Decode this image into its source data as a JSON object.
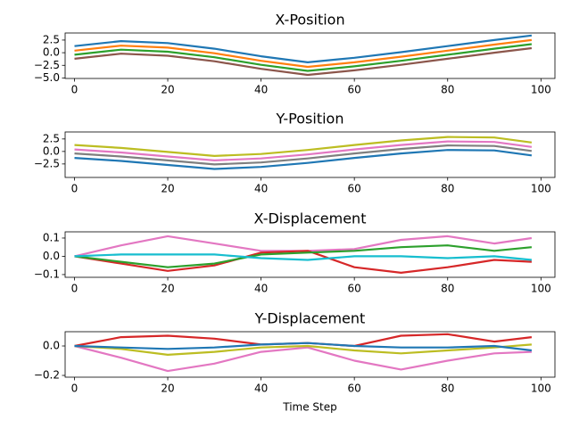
{
  "chart_data": [
    {
      "type": "line",
      "title": "X-Position",
      "x": [
        0,
        10,
        20,
        30,
        40,
        50,
        60,
        70,
        80,
        90,
        98
      ],
      "series": [
        {
          "color": "#1f77b4",
          "values": [
            1.3,
            2.3,
            1.9,
            0.8,
            -0.7,
            -1.9,
            -1.0,
            0.1,
            1.3,
            2.5,
            3.4
          ]
        },
        {
          "color": "#ff7f0e",
          "values": [
            0.4,
            1.4,
            1.0,
            -0.1,
            -1.6,
            -2.8,
            -1.9,
            -0.8,
            0.4,
            1.6,
            2.5
          ]
        },
        {
          "color": "#2ca02c",
          "values": [
            -0.4,
            0.6,
            0.2,
            -0.9,
            -2.4,
            -3.6,
            -2.7,
            -1.6,
            -0.4,
            0.8,
            1.7
          ]
        },
        {
          "color": "#8c564b",
          "values": [
            -1.2,
            -0.2,
            -0.6,
            -1.7,
            -3.2,
            -4.4,
            -3.5,
            -2.4,
            -1.2,
            0.0,
            0.9
          ]
        }
      ],
      "xlim": [
        -2,
        103
      ],
      "ylim": [
        -5.1,
        3.9
      ],
      "xticks": [
        0,
        20,
        40,
        60,
        80,
        100
      ],
      "yticks": [
        {
          "value": 2.5,
          "label": "2.5"
        },
        {
          "value": 0,
          "label": "0.0"
        },
        {
          "value": -2.5,
          "label": "−2.5"
        },
        {
          "value": -5,
          "label": "−5.0"
        }
      ]
    },
    {
      "type": "line",
      "title": "Y-Position",
      "x": [
        0,
        10,
        20,
        30,
        40,
        50,
        60,
        70,
        80,
        90,
        98
      ],
      "series": [
        {
          "color": "#bcbd22",
          "values": [
            1.3,
            0.7,
            -0.1,
            -0.9,
            -0.5,
            0.3,
            1.3,
            2.2,
            2.9,
            2.8,
            1.8
          ]
        },
        {
          "color": "#e377c2",
          "values": [
            0.4,
            -0.2,
            -1.0,
            -1.8,
            -1.4,
            -0.6,
            0.4,
            1.3,
            2.0,
            1.9,
            0.9
          ]
        },
        {
          "color": "#7f7f7f",
          "values": [
            -0.4,
            -1.0,
            -1.8,
            -2.6,
            -2.2,
            -1.4,
            -0.4,
            0.5,
            1.2,
            1.1,
            0.1
          ]
        },
        {
          "color": "#1f77b4",
          "values": [
            -1.3,
            -1.9,
            -2.7,
            -3.5,
            -3.1,
            -2.3,
            -1.3,
            -0.4,
            0.3,
            0.2,
            -0.8
          ]
        }
      ],
      "xlim": [
        -2,
        103
      ],
      "ylim": [
        -5.2,
        3.9
      ],
      "xticks": [
        0,
        20,
        40,
        60,
        80,
        100
      ],
      "yticks": [
        {
          "value": 2.5,
          "label": "2.5"
        },
        {
          "value": 0,
          "label": "0.0"
        },
        {
          "value": -2.5,
          "label": "−2.5"
        }
      ]
    },
    {
      "type": "line",
      "title": "X-Displacement",
      "x": [
        0,
        10,
        20,
        30,
        40,
        50,
        60,
        70,
        80,
        90,
        98
      ],
      "series": [
        {
          "color": "#e377c2",
          "values": [
            0,
            0.06,
            0.11,
            0.07,
            0.03,
            0.03,
            0.04,
            0.09,
            0.11,
            0.07,
            0.1
          ]
        },
        {
          "color": "#d62728",
          "values": [
            0,
            -0.04,
            -0.08,
            -0.05,
            0.02,
            0.03,
            -0.06,
            -0.09,
            -0.06,
            -0.02,
            -0.03
          ]
        },
        {
          "color": "#2ca02c",
          "values": [
            0,
            -0.03,
            -0.06,
            -0.04,
            0.01,
            0.02,
            0.03,
            0.05,
            0.06,
            0.03,
            0.05
          ]
        },
        {
          "color": "#17becf",
          "values": [
            0,
            0.01,
            0.01,
            0.01,
            -0.01,
            -0.02,
            0.0,
            0.0,
            -0.01,
            0.0,
            -0.02
          ]
        }
      ],
      "xlim": [
        -2,
        103
      ],
      "ylim": [
        -0.115,
        0.134
      ],
      "xticks": [
        0,
        20,
        40,
        60,
        80,
        100
      ],
      "yticks": [
        {
          "value": 0.1,
          "label": "0.1"
        },
        {
          "value": 0,
          "label": "0.0"
        },
        {
          "value": -0.1,
          "label": "−0.1"
        }
      ]
    },
    {
      "type": "line",
      "title": "Y-Displacement",
      "xlabel": "Time Step",
      "x": [
        0,
        10,
        20,
        30,
        40,
        50,
        60,
        70,
        80,
        90,
        98
      ],
      "series": [
        {
          "color": "#d62728",
          "values": [
            0,
            0.06,
            0.07,
            0.05,
            0.01,
            0.02,
            0.0,
            0.07,
            0.08,
            0.03,
            0.06
          ]
        },
        {
          "color": "#e377c2",
          "values": [
            0,
            -0.08,
            -0.17,
            -0.12,
            -0.04,
            -0.01,
            -0.1,
            -0.16,
            -0.1,
            -0.05,
            -0.04
          ]
        },
        {
          "color": "#bcbd22",
          "values": [
            0,
            -0.02,
            -0.06,
            -0.04,
            -0.01,
            0.0,
            -0.03,
            -0.05,
            -0.03,
            -0.01,
            0.01
          ]
        },
        {
          "color": "#1f77b4",
          "values": [
            0,
            -0.01,
            -0.02,
            -0.01,
            0.01,
            0.02,
            0.0,
            -0.01,
            -0.01,
            0.0,
            -0.03
          ]
        }
      ],
      "xlim": [
        -2,
        103
      ],
      "ylim": [
        -0.212,
        0.097
      ],
      "xticks": [
        0,
        20,
        40,
        60,
        80,
        100
      ],
      "yticks": [
        {
          "value": 0,
          "label": "0.0"
        },
        {
          "value": -0.2,
          "label": "−0.2"
        }
      ]
    }
  ]
}
